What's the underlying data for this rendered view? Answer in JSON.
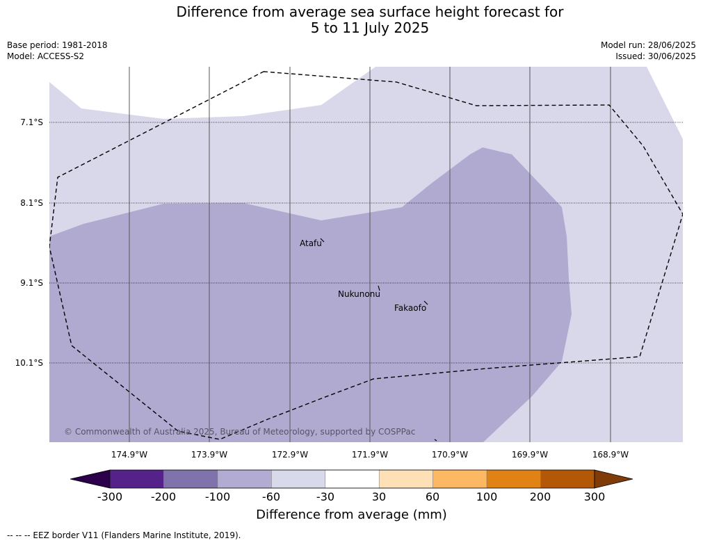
{
  "title": {
    "line1": "Difference from average sea surface height forecast for",
    "line2": "5 to 11 July 2025"
  },
  "meta_left": {
    "base_period": "Base period: 1981-2018",
    "model": "Model: ACCESS-S2"
  },
  "meta_right": {
    "model_run": "Model run: 28/06/2025",
    "issued": "Issued: 30/06/2025"
  },
  "map": {
    "lat_labels": [
      "7.1°S",
      "8.1°S",
      "9.1°S",
      "10.1°S"
    ],
    "lon_labels": [
      "174.9°W",
      "173.9°W",
      "172.9°W",
      "171.9°W",
      "170.9°W",
      "169.9°W",
      "168.9°W"
    ],
    "places": [
      "Atafu",
      "Nukunonu",
      "Fakaofo"
    ],
    "copyright": "© Commonwealth of Australia 2025, Bureau of Meteorology, supported by COSPPac",
    "fill_colors": {
      "-60_to_-30": "#d8d8ea",
      "-100_to_-60": "#b0aad1",
      "-30_to_30": "#ffffff"
    }
  },
  "colorbar": {
    "title": "Difference from average (mm)",
    "ticks": [
      "-300",
      "-200",
      "-100",
      "-60",
      "-30",
      "30",
      "60",
      "100",
      "200",
      "300"
    ],
    "colors": [
      "#2d004b",
      "#542288",
      "#8073ac",
      "#b2abd2",
      "#d8daeb",
      "#ffffff",
      "#fee0b6",
      "#fdb863",
      "#e08214",
      "#b35806",
      "#7f3b08"
    ]
  },
  "footer": "--  --  -- EEZ border V11 (Flanders Marine Institute, 2019)."
}
